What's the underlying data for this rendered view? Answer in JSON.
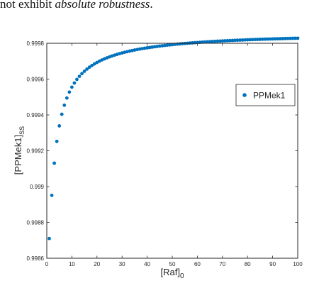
{
  "header_text": {
    "plain": "not exhibit ",
    "emphasis": "absolute robustness",
    "tail": "."
  },
  "colors": {
    "marker": "#0072BD",
    "axis": "#262626",
    "text": "#262626",
    "background": "#ffffff"
  },
  "chart_data": {
    "type": "scatter",
    "title": "",
    "xlabel": "[Raf]",
    "xlabel_subscript": "0",
    "ylabel": "[PPMek1]",
    "ylabel_subscript": "SS",
    "xlim": [
      0,
      100
    ],
    "ylim": [
      0.9986,
      0.9998
    ],
    "x_ticks": [
      0,
      10,
      20,
      30,
      40,
      50,
      60,
      70,
      80,
      90,
      100
    ],
    "y_ticks": [
      0.9986,
      0.9988,
      0.999,
      0.9992,
      0.9994,
      0.9996,
      0.9998
    ],
    "y_tick_labels": [
      "0.9986",
      "0.9988",
      "0.999",
      "0.9992",
      "0.9994",
      "0.9996",
      "0.9998"
    ],
    "grid": false,
    "legend_position": "upper-right",
    "series": [
      {
        "name": "PPMek1",
        "marker": "circle",
        "color": "#0072BD",
        "x": [
          1,
          2,
          3,
          4,
          5,
          6,
          7,
          8,
          9,
          10,
          11,
          12,
          13,
          14,
          15,
          16,
          17,
          18,
          19,
          20,
          21,
          22,
          23,
          24,
          25,
          26,
          27,
          28,
          29,
          30,
          31,
          32,
          33,
          34,
          35,
          36,
          37,
          38,
          39,
          40,
          41,
          42,
          43,
          44,
          45,
          46,
          47,
          48,
          49,
          50,
          51,
          52,
          53,
          54,
          55,
          56,
          57,
          58,
          59,
          60,
          61,
          62,
          63,
          64,
          65,
          66,
          67,
          68,
          69,
          70,
          71,
          72,
          73,
          74,
          75,
          76,
          77,
          78,
          79,
          80,
          81,
          82,
          83,
          84,
          85,
          86,
          87,
          88,
          89,
          90,
          91,
          92,
          93,
          94,
          95,
          96,
          97,
          98,
          99,
          100
        ],
        "y": [
          0.99871,
          0.9989511,
          0.9991307,
          0.9992523,
          0.9993389,
          0.9994037,
          0.9994542,
          0.9994945,
          0.9995275,
          0.999555,
          0.9995782,
          0.9995982,
          0.9996154,
          0.9996306,
          0.9996439,
          0.9996559,
          0.9996666,
          0.9996762,
          0.999685,
          0.999693,
          0.9997003,
          0.999707,
          0.9997132,
          0.9997189,
          0.9997242,
          0.9997292,
          0.9997338,
          0.9997381,
          0.9997422,
          0.999746,
          0.9997496,
          0.999753,
          0.9997562,
          0.9997592,
          0.9997621,
          0.9997649,
          0.9997675,
          0.9997699,
          0.9997723,
          0.9997745,
          0.9997767,
          0.9997787,
          0.9997807,
          0.9997825,
          0.9997843,
          0.9997861,
          0.9997877,
          0.9997893,
          0.9997908,
          0.9997923,
          0.9997937,
          0.9997951,
          0.9997964,
          0.9997977,
          0.9997989,
          0.9998001,
          0.9998012,
          0.9998023,
          0.9998034,
          0.9998044,
          0.9998054,
          0.9998064,
          0.9998073,
          0.9998082,
          0.9998091,
          0.9998099,
          0.9998108,
          0.9998116,
          0.9998123,
          0.9998131,
          0.9998138,
          0.9998145,
          0.9998152,
          0.9998158,
          0.9998165,
          0.9998171,
          0.9998177,
          0.9998183,
          0.9998189,
          0.9998195,
          0.99982,
          0.9998206,
          0.9998211,
          0.9998216,
          0.9998221,
          0.9998226,
          0.999823,
          0.9998235,
          0.9998239,
          0.9998244,
          0.9998248,
          0.9998252,
          0.9998256,
          0.999826,
          0.9998264,
          0.9998268,
          0.9998272,
          0.9998275,
          0.9998279,
          0.9998282
        ]
      }
    ]
  }
}
